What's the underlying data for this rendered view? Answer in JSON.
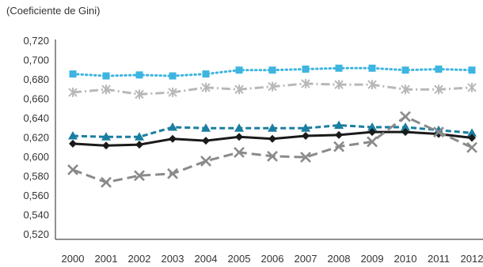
{
  "chart_data": {
    "type": "line",
    "title": "",
    "ylabel": "(Coeficiente de Gini)",
    "xlabel": "",
    "x": [
      "2000",
      "2001",
      "2002",
      "2003",
      "2004",
      "2005",
      "2006",
      "2007",
      "2008",
      "2009",
      "2010",
      "2011",
      "2012"
    ],
    "ylim": [
      0.52,
      0.72
    ],
    "yticks": [
      "0,520",
      "0,540",
      "0,560",
      "0,580",
      "0,600",
      "0,620",
      "0,640",
      "0,660",
      "0,680",
      "0,700",
      "0,720"
    ],
    "grid": false,
    "legend": "none",
    "series": [
      {
        "color": "#3db5e0",
        "line_style": "dotted",
        "marker": "square",
        "values": [
          0.686,
          0.684,
          0.685,
          0.684,
          0.686,
          0.69,
          0.69,
          0.691,
          0.692,
          0.692,
          0.69,
          0.691,
          0.69
        ]
      },
      {
        "color": "#b8b8b8",
        "line_style": "dash-dot",
        "marker": "star",
        "values": [
          0.667,
          0.67,
          0.665,
          0.667,
          0.672,
          0.67,
          0.673,
          0.676,
          0.675,
          0.675,
          0.67,
          0.67,
          0.672
        ]
      },
      {
        "color": "#1a7ea0",
        "line_style": "dashed",
        "marker": "triangle",
        "values": [
          0.622,
          0.621,
          0.621,
          0.631,
          0.63,
          0.63,
          0.63,
          0.63,
          0.633,
          0.631,
          0.631,
          0.628,
          0.625
        ]
      },
      {
        "color": "#1a1a1a",
        "line_style": "solid",
        "marker": "diamond",
        "values": [
          0.614,
          0.612,
          0.613,
          0.619,
          0.617,
          0.621,
          0.619,
          0.622,
          0.623,
          0.626,
          0.626,
          0.624,
          0.62
        ]
      },
      {
        "color": "#8a8a8a",
        "line_style": "long-dash",
        "marker": "x",
        "values": [
          0.587,
          0.574,
          0.581,
          0.583,
          0.596,
          0.605,
          0.601,
          0.6,
          0.611,
          0.616,
          0.642,
          0.626,
          0.61
        ]
      }
    ]
  }
}
